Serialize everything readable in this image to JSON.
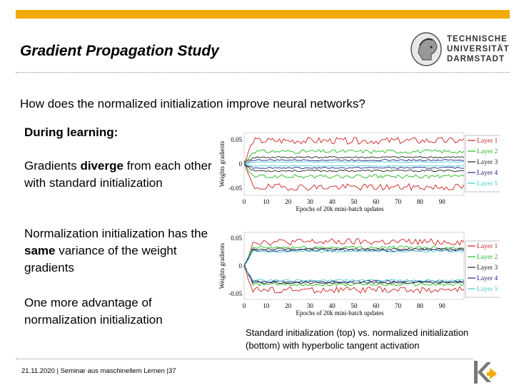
{
  "slide": {
    "title": "Gradient Propagation Study",
    "question": "How does the normalized initialization improve neural networks?",
    "during_learning": "During learning:",
    "p1_pre": "Gradients ",
    "p1_bold": "diverge",
    "p1_post": " from each other with standard initialization",
    "p2_pre": "Normalization initialization has the ",
    "p2_bold": "same",
    "p2_post": " variance of the weight gradients",
    "p3": "One more advantage of normalization initialization",
    "caption": "Standard initialization (top) vs. normalized initialization (bottom) with hyperbolic tangent activation",
    "footer": "21.11.2020 | Seminar aus maschinellem Lernen |37"
  },
  "logo": {
    "line1": "TECHNISCHE",
    "line2": "UNIVERSITÄT",
    "line3": "DARMSTADT",
    "seal_icon": "tu-darmstadt-seal-icon"
  },
  "colors": {
    "accent_bar": "#f2a900",
    "layer1": "#cc2222",
    "layer2": "#22bb22",
    "layer3": "#222222",
    "layer4": "#222288",
    "layer5": "#44cccc",
    "k_icon_gray": "#777777",
    "k_icon_orange": "#f2a900"
  },
  "chart_data": [
    {
      "type": "line",
      "xlabel": "Epochs of 20k mini-batch updates",
      "ylabel": "Weights gradients",
      "x_ticks": [
        "0",
        "10",
        "20",
        "30",
        "40",
        "50",
        "60",
        "70",
        "80",
        "90"
      ],
      "y_ticks": [
        "0.05",
        "0",
        "-0.05"
      ],
      "xlim": [
        0,
        100
      ],
      "ylim": [
        -0.065,
        0.065
      ],
      "legend_position": "right",
      "series": [
        {
          "name": "Layer 1",
          "color": "#cc2222",
          "upper": 0.048,
          "lower": -0.048,
          "noise": 0.007
        },
        {
          "name": "Layer 2",
          "color": "#22bb22",
          "upper": 0.026,
          "lower": -0.026,
          "noise": 0.004
        },
        {
          "name": "Layer 3",
          "color": "#222222",
          "upper": 0.014,
          "lower": -0.014,
          "noise": 0.002
        },
        {
          "name": "Layer 4",
          "color": "#222288",
          "upper": 0.008,
          "lower": -0.008,
          "noise": 0.0015
        },
        {
          "name": "Layer 5",
          "color": "#44cccc",
          "upper": 0.004,
          "lower": -0.004,
          "noise": 0.001
        }
      ]
    },
    {
      "type": "line",
      "xlabel": "Epochs of 20k mini-batch updates",
      "ylabel": "Weights gradients",
      "x_ticks": [
        "0",
        "10",
        "20",
        "30",
        "40",
        "50",
        "60",
        "70",
        "80",
        "90"
      ],
      "y_ticks": [
        "0.05",
        "0",
        "-0.05"
      ],
      "xlim": [
        0,
        100
      ],
      "ylim": [
        -0.06,
        0.06
      ],
      "legend_position": "right",
      "series": [
        {
          "name": "Layer 1",
          "color": "#cc2222",
          "upper": 0.043,
          "lower": -0.043,
          "noise": 0.006
        },
        {
          "name": "Layer 2",
          "color": "#22bb22",
          "upper": 0.033,
          "lower": -0.033,
          "noise": 0.003
        },
        {
          "name": "Layer 3",
          "color": "#222222",
          "upper": 0.03,
          "lower": -0.03,
          "noise": 0.002
        },
        {
          "name": "Layer 4",
          "color": "#222288",
          "upper": 0.028,
          "lower": -0.028,
          "noise": 0.002
        },
        {
          "name": "Layer 5",
          "color": "#44cccc",
          "upper": 0.026,
          "lower": -0.026,
          "noise": 0.002
        }
      ]
    }
  ]
}
